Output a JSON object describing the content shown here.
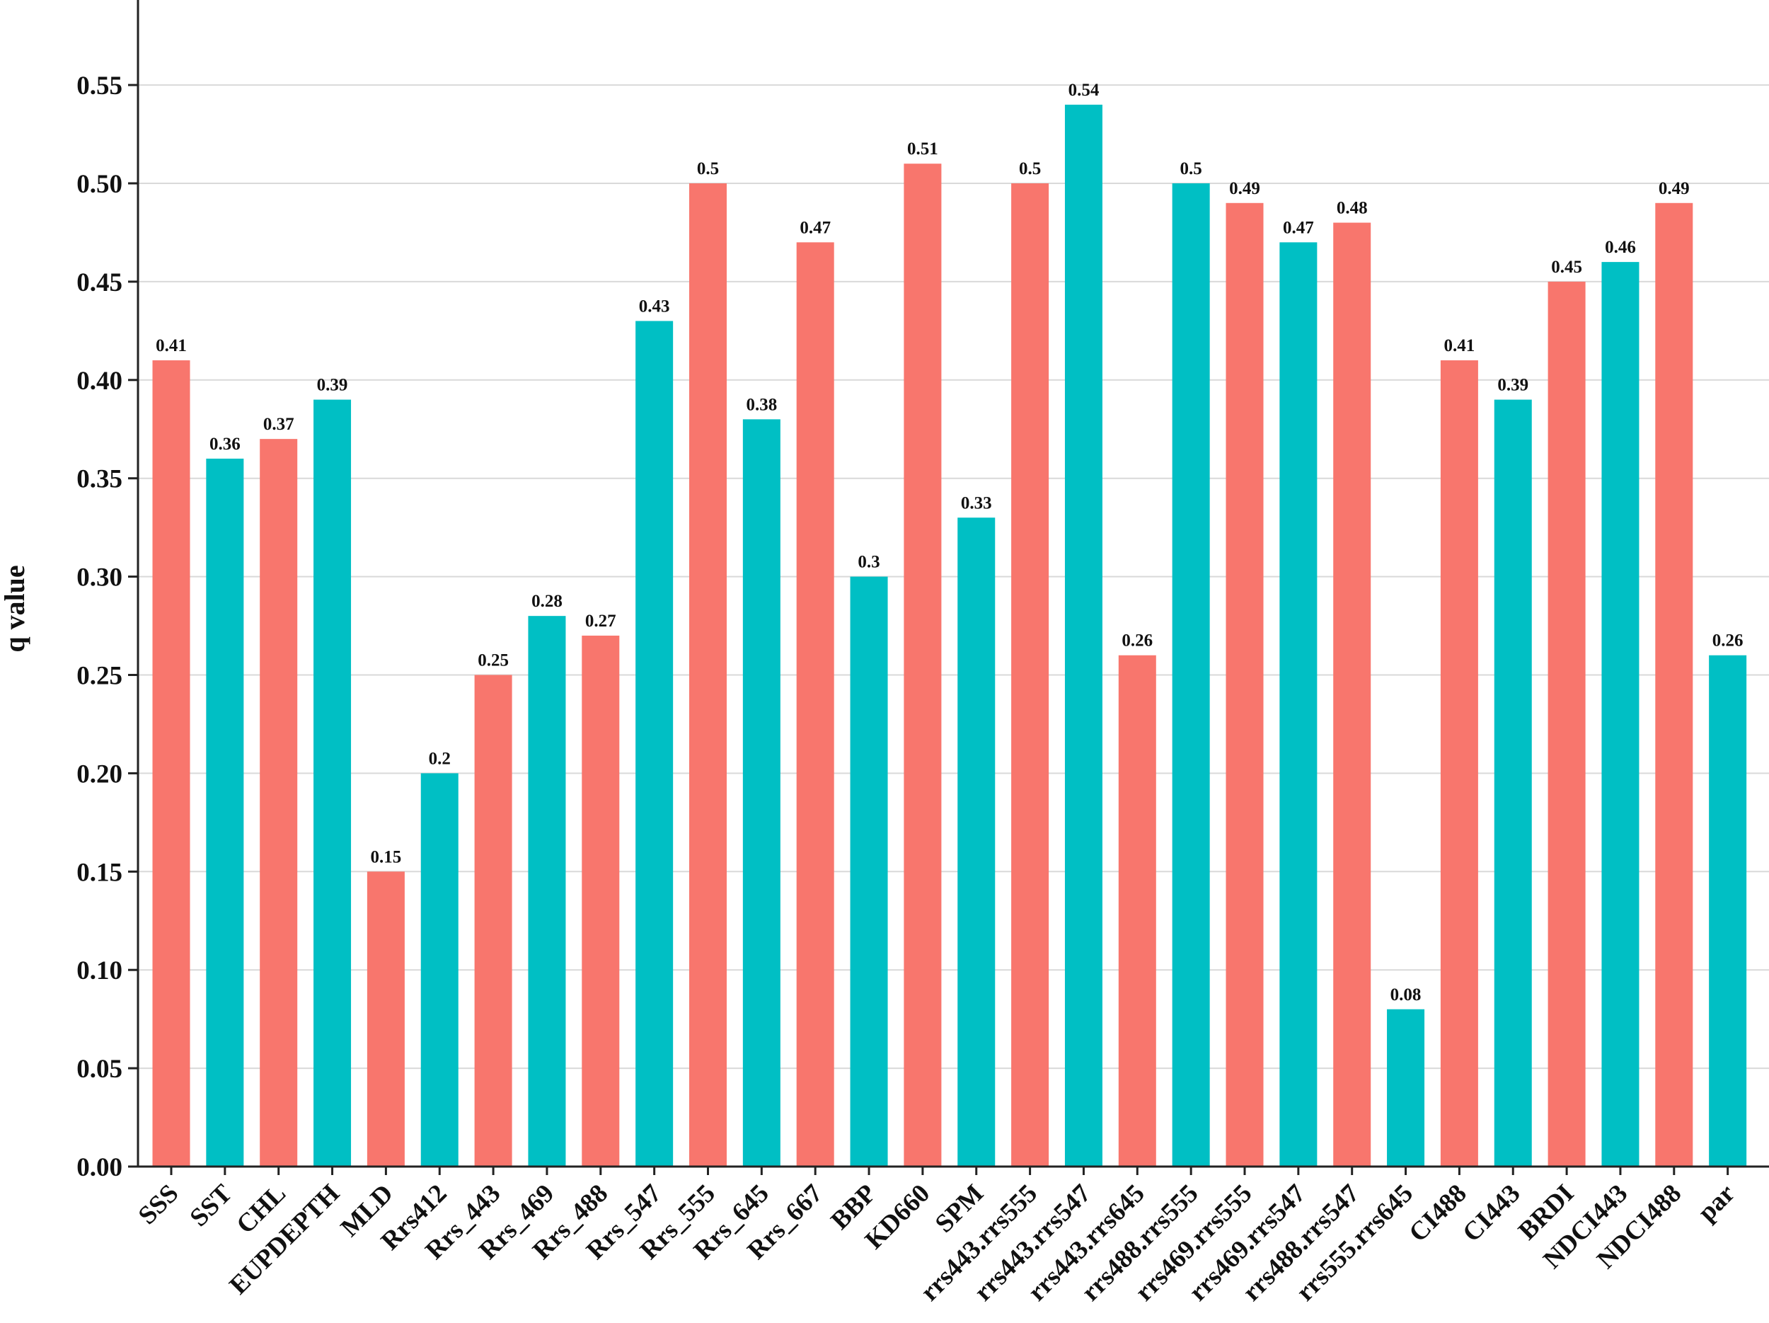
{
  "chart_data": {
    "type": "bar",
    "title": "",
    "xlabel": "",
    "ylabel": "q value",
    "ylim": [
      0,
      0.59
    ],
    "yticks": [
      "0.00",
      "0.05",
      "0.10",
      "0.15",
      "0.20",
      "0.25",
      "0.30",
      "0.35",
      "0.40",
      "0.45",
      "0.50",
      "0.55"
    ],
    "grid": true,
    "colors": {
      "salmon": "#F8766D",
      "teal": "#00BFC4"
    },
    "categories": [
      "SSS",
      "SST",
      "CHL",
      "EUPDEPTH",
      "MLD",
      "Rrs412",
      "Rrs_443",
      "Rrs_469",
      "Rrs_488",
      "Rrs_547",
      "Rrs_555",
      "Rrs_645",
      "Rrs_667",
      "BBP",
      "KD660",
      "SPM",
      "rrs443.rrs555",
      "rrs443.rrs547",
      "rrs443.rrs645",
      "rrs488.rrs555",
      "rrs469.rrs555",
      "rrs469.rrs547",
      "rrs488.rrs547",
      "rrs555.rrs645",
      "CI488",
      "CI443",
      "BRDI",
      "NDCI443",
      "NDCI488",
      "par"
    ],
    "values": [
      0.41,
      0.36,
      0.37,
      0.39,
      0.15,
      0.2,
      0.25,
      0.28,
      0.27,
      0.43,
      0.5,
      0.38,
      0.47,
      0.3,
      0.51,
      0.33,
      0.5,
      0.54,
      0.26,
      0.5,
      0.49,
      0.47,
      0.48,
      0.08,
      0.41,
      0.39,
      0.45,
      0.46,
      0.49,
      0.26
    ],
    "value_labels": [
      "0.41",
      "0.36",
      "0.37",
      "0.39",
      "0.15",
      "0.2",
      "0.25",
      "0.28",
      "0.27",
      "0.43",
      "0.5",
      "0.38",
      "0.47",
      "0.3",
      "0.51",
      "0.33",
      "0.5",
      "0.54",
      "0.26",
      "0.5",
      "0.49",
      "0.47",
      "0.48",
      "0.08",
      "0.41",
      "0.39",
      "0.45",
      "0.46",
      "0.49",
      "0.26"
    ],
    "bar_colors": [
      "salmon",
      "teal",
      "salmon",
      "teal",
      "salmon",
      "teal",
      "salmon",
      "teal",
      "salmon",
      "teal",
      "salmon",
      "teal",
      "salmon",
      "teal",
      "salmon",
      "teal",
      "salmon",
      "teal",
      "salmon",
      "teal",
      "salmon",
      "teal",
      "salmon",
      "teal",
      "salmon",
      "teal",
      "salmon",
      "teal",
      "salmon",
      "teal"
    ]
  }
}
